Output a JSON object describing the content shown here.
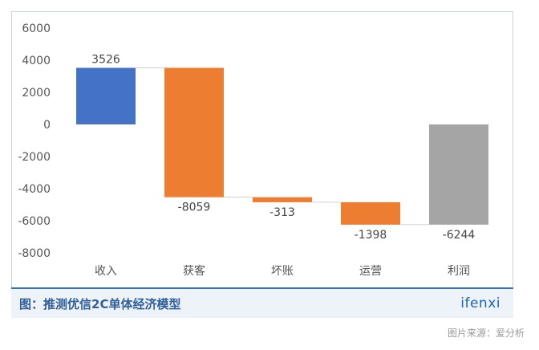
{
  "chart_data": {
    "type": "bar",
    "variant": "waterfall",
    "categories": [
      "收入",
      "获客",
      "坏账",
      "运营",
      "利润"
    ],
    "values": [
      3526,
      -8059,
      -313,
      -1398,
      -6244
    ],
    "data_labels": [
      "3526",
      "-8059",
      "-313",
      "-1398",
      "-6244"
    ],
    "ylim": [
      -8000,
      6000
    ],
    "yticks": [
      6000,
      4000,
      2000,
      0,
      -2000,
      -4000,
      -6000,
      -8000
    ],
    "grid": false,
    "legend": "none",
    "colors": {
      "income": "#4472c4",
      "cost": "#ed7d31",
      "total": "#a5a5a5"
    }
  },
  "caption": "图：推测优信2C单体经济模型",
  "logo": "ifenxi",
  "source": "图片来源：爱分析"
}
